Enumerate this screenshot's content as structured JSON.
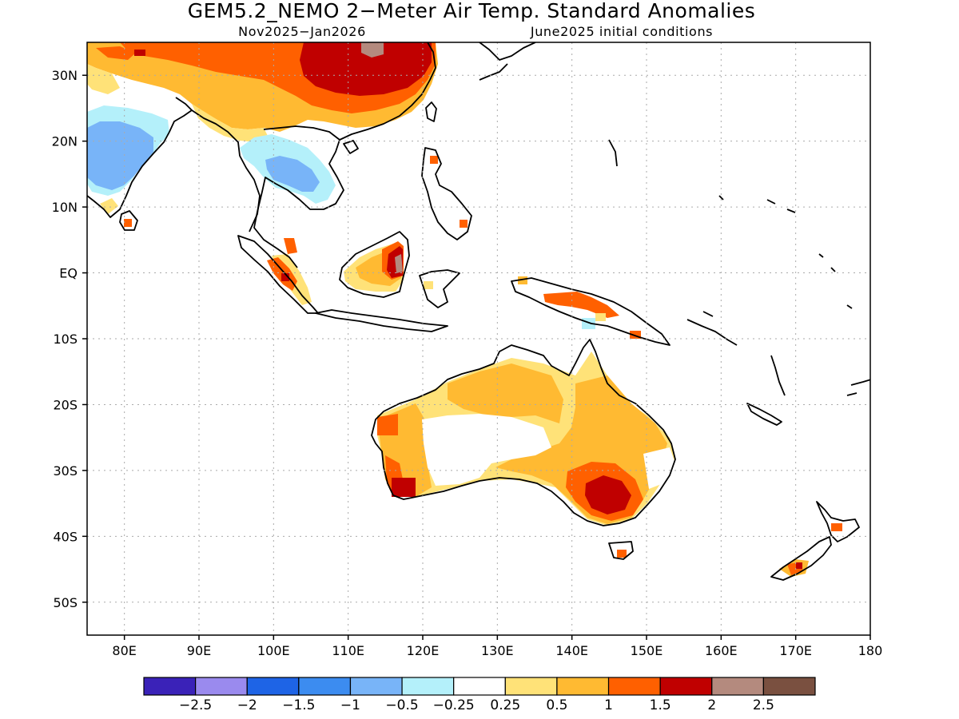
{
  "title": "GEM5.2_NEMO 2−Meter Air Temp. Standard Anomalies",
  "subtitle_left": "Nov2025−Jan2026",
  "subtitle_right": "June2025 initial conditions",
  "map": {
    "lon_range": [
      75,
      180
    ],
    "lat_range": [
      -55,
      35
    ],
    "x_ticks": [
      {
        "lon": 80,
        "label": "80E"
      },
      {
        "lon": 90,
        "label": "90E"
      },
      {
        "lon": 100,
        "label": "100E"
      },
      {
        "lon": 110,
        "label": "110E"
      },
      {
        "lon": 120,
        "label": "120E"
      },
      {
        "lon": 130,
        "label": "130E"
      },
      {
        "lon": 140,
        "label": "140E"
      },
      {
        "lon": 150,
        "label": "150E"
      },
      {
        "lon": 160,
        "label": "160E"
      },
      {
        "lon": 170,
        "label": "170E"
      },
      {
        "lon": 180,
        "label": "180"
      }
    ],
    "y_ticks": [
      {
        "lat": 30,
        "label": "30N"
      },
      {
        "lat": 20,
        "label": "20N"
      },
      {
        "lat": 10,
        "label": "10N"
      },
      {
        "lat": 0,
        "label": "EQ"
      },
      {
        "lat": -10,
        "label": "10S"
      },
      {
        "lat": -20,
        "label": "20S"
      },
      {
        "lat": -30,
        "label": "30S"
      },
      {
        "lat": -40,
        "label": "40S"
      },
      {
        "lat": -50,
        "label": "50S"
      }
    ],
    "grid": true
  },
  "legend": {
    "bins": [
      {
        "color": "#3a22b8"
      },
      {
        "color": "#9a8aee"
      },
      {
        "color": "#1e64e6"
      },
      {
        "color": "#3c8cf0"
      },
      {
        "color": "#78b4f8"
      },
      {
        "color": "#b4f0fa"
      },
      {
        "color": "#ffffff"
      },
      {
        "color": "#ffe278"
      },
      {
        "color": "#ffba32"
      },
      {
        "color": "#ff6000"
      },
      {
        "color": "#c00000"
      },
      {
        "color": "#b48a7e"
      },
      {
        "color": "#7a5040"
      }
    ],
    "labels": [
      "−2.5",
      "−2",
      "−1.5",
      "−1",
      "−0.5",
      "−0.25",
      "0.25",
      "0.5",
      "1",
      "1.5",
      "2",
      "2.5"
    ]
  },
  "colors": {
    "cool_light": "#b4f0fa",
    "cool_mid": "#78b4f8",
    "cool_strong": "#3c8cf0",
    "warm_light": "#ffe278",
    "warm_mid": "#ffba32",
    "warm_strong": "#ff6000",
    "hot": "#c00000",
    "hottest": "#b48a7e"
  }
}
